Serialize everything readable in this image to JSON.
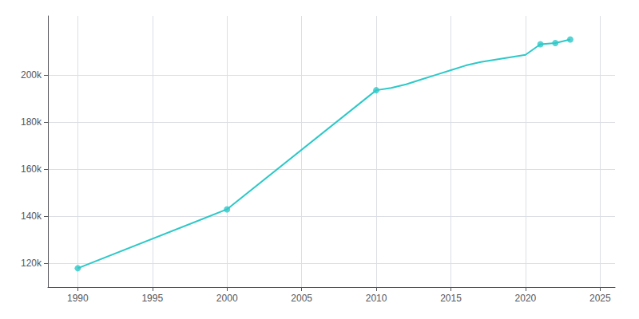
{
  "chart_data": {
    "type": "line",
    "series": [
      {
        "type": "line",
        "color": "#2ec8c8",
        "marker": "none",
        "x": [
          1990,
          2000,
          2010,
          2011,
          2012,
          2013,
          2014,
          2015,
          2016,
          2017,
          2018,
          2019,
          2020,
          2021,
          2022,
          2023
        ],
        "values": [
          118000,
          143000,
          193500,
          194500,
          196000,
          198000,
          200000,
          202000,
          204000,
          205500,
          206500,
          207500,
          208500,
          213000,
          213500,
          215000
        ]
      },
      {
        "type": "scatter",
        "color": "#2ec8c8",
        "marker": "circle",
        "x": [
          1990,
          2000,
          2010,
          2021,
          2022,
          2023
        ],
        "values": [
          118000,
          143000,
          193500,
          213000,
          213500,
          215000
        ]
      }
    ],
    "xlim": [
      1988,
      2026
    ],
    "ylim": [
      110000,
      225000
    ],
    "xticks": [
      1990,
      1995,
      2000,
      2005,
      2010,
      2015,
      2020,
      2025
    ],
    "yticks": [
      {
        "value": 120000,
        "label": "120k"
      },
      {
        "value": 140000,
        "label": "140k"
      },
      {
        "value": 160000,
        "label": "160k"
      },
      {
        "value": 180000,
        "label": "180k"
      },
      {
        "value": 200000,
        "label": "200k"
      }
    ],
    "grid": true
  }
}
